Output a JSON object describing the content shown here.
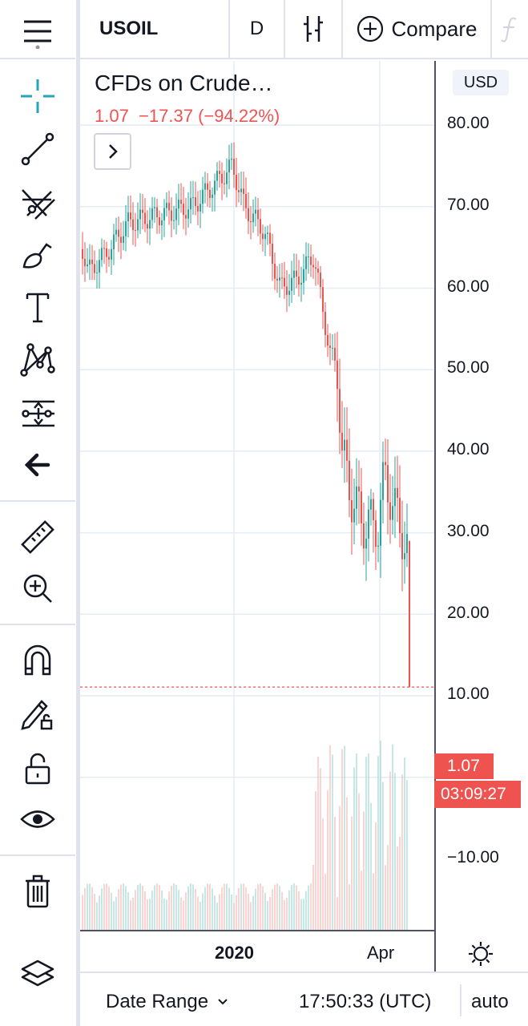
{
  "header": {
    "symbol": "USOIL",
    "interval": "D",
    "compare_label": "Compare"
  },
  "legend": {
    "title": "CFDs on Crude…",
    "last": "1.07",
    "change": "−17.37",
    "change_pct": "(−94.22%)"
  },
  "price_axis": {
    "currency": "USD",
    "labels": [
      "80.00",
      "70.00",
      "60.00",
      "50.00",
      "40.00",
      "30.00",
      "20.00",
      "10.00",
      "−10.00"
    ],
    "last_price_tag": "1.07",
    "countdown": "03:09:27"
  },
  "time_axis": {
    "labels": [
      "2020",
      "Apr"
    ]
  },
  "footer": {
    "date_range_label": "Date Range",
    "clock": "17:50:33 (UTC)",
    "scale_mode": "auto"
  },
  "colors": {
    "up": "#26a69a",
    "down": "#ef5350",
    "grid": "#e3edf6"
  },
  "toolbar_icons": [
    "menu-icon",
    "crosshair-icon",
    "trend-line-icon",
    "pitchfork-icon",
    "brush-icon",
    "text-icon",
    "pattern-icon",
    "prediction-icon",
    "back-arrow-icon",
    "ruler-icon",
    "zoom-in-icon",
    "magnet-icon",
    "lock-drawing-icon",
    "lock-icon",
    "eye-icon",
    "trash-icon",
    "layers-icon"
  ]
}
